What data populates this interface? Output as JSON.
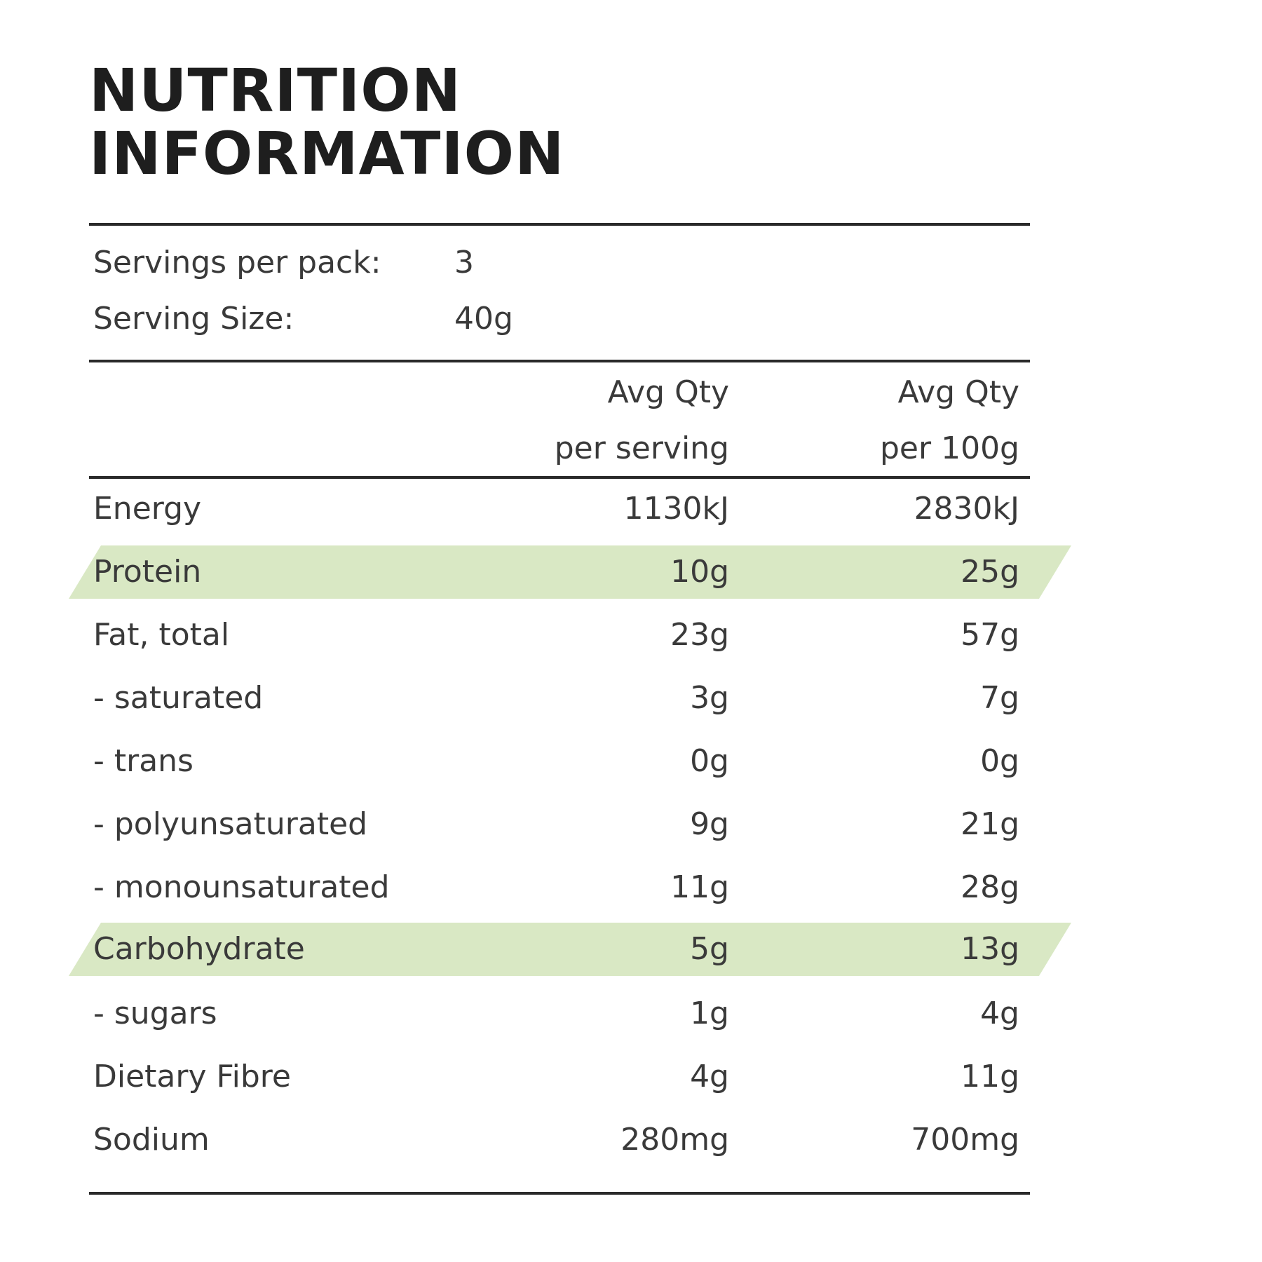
{
  "title": {
    "line1": "NUTRITION",
    "line2": "INFORMATION"
  },
  "servings": {
    "per_pack_label": "Servings per pack:",
    "per_pack_value": "3",
    "size_label": "Serving Size:",
    "size_value": "40g"
  },
  "columns": {
    "per_serving_line1": "Avg Qty",
    "per_serving_line2": "per serving",
    "per_100g_line1": "Avg Qty",
    "per_100g_line2": "per 100g"
  },
  "colors": {
    "highlight_band": "#d9e8c4",
    "rule": "#2a2a2a",
    "text": "#3a3a3a"
  },
  "rows": [
    {
      "name": "Energy",
      "per_serving": "1130kJ",
      "per_100g": "2830kJ",
      "highlight": false
    },
    {
      "name": "Protein",
      "per_serving": "10g",
      "per_100g": "25g",
      "highlight": true
    },
    {
      "name": "Fat, total",
      "per_serving": "23g",
      "per_100g": "57g",
      "highlight": false
    },
    {
      "name": "- saturated",
      "per_serving": "3g",
      "per_100g": "7g",
      "highlight": false
    },
    {
      "name": "- trans",
      "per_serving": "0g",
      "per_100g": "0g",
      "highlight": false
    },
    {
      "name": "- polyunsaturated",
      "per_serving": "9g",
      "per_100g": "21g",
      "highlight": false
    },
    {
      "name": "- monounsaturated",
      "per_serving": "11g",
      "per_100g": "28g",
      "highlight": false
    },
    {
      "name": "Carbohydrate",
      "per_serving": "5g",
      "per_100g": "13g",
      "highlight": true
    },
    {
      "name": "- sugars",
      "per_serving": "1g",
      "per_100g": "4g",
      "highlight": false
    },
    {
      "name": "Dietary Fibre",
      "per_serving": "4g",
      "per_100g": "11g",
      "highlight": false
    },
    {
      "name": "Sodium",
      "per_serving": "280mg",
      "per_100g": "700mg",
      "highlight": false
    }
  ]
}
